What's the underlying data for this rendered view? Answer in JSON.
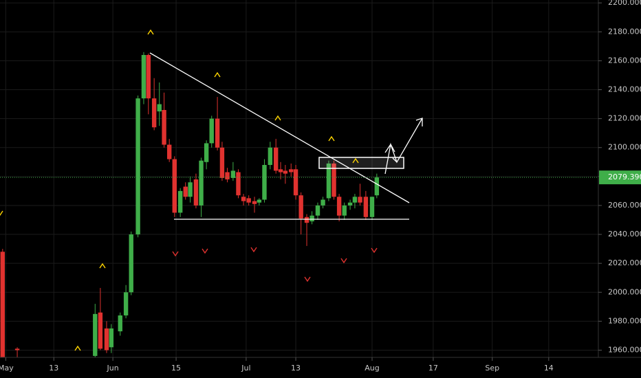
{
  "chart_data": {
    "type": "candlestick",
    "up_color": "#3fae49",
    "down_color": "#e0322f",
    "grid": true,
    "xlim": [
      0,
      114.5
    ],
    "ylim": [
      1955,
      2202
    ],
    "xticks": [
      {
        "value": 1.1,
        "label": "May"
      },
      {
        "value": 10.3,
        "label": "13"
      },
      {
        "value": 21.6,
        "label": "Jun"
      },
      {
        "value": 33.7,
        "label": "15"
      },
      {
        "value": 47.1,
        "label": "Jul"
      },
      {
        "value": 56.6,
        "label": "13"
      },
      {
        "value": 71.2,
        "label": "Aug"
      },
      {
        "value": 82.9,
        "label": "17"
      },
      {
        "value": 94.2,
        "label": "Sep"
      },
      {
        "value": 105,
        "label": "14"
      }
    ],
    "yticks": [
      {
        "value": 1960,
        "label": "1960.000"
      },
      {
        "value": 1980,
        "label": "1980.000"
      },
      {
        "value": 2000,
        "label": "2000.000"
      },
      {
        "value": 2020,
        "label": "2020.000"
      },
      {
        "value": 2040,
        "label": "2040.000"
      },
      {
        "value": 2060,
        "label": "2060.000"
      },
      {
        "value": 2080,
        "label": "2080.000"
      },
      {
        "value": 2100,
        "label": "2100.000"
      },
      {
        "value": 2120,
        "label": "2120.000"
      },
      {
        "value": 2140,
        "label": "2140.000"
      },
      {
        "value": 2160,
        "label": "2160.000"
      },
      {
        "value": 2180,
        "label": "2180.000"
      },
      {
        "value": 2200,
        "label": "2200.000"
      }
    ],
    "last_price": {
      "value": 2079.39,
      "label": "2079.390"
    },
    "x": [
      0.5,
      3.3,
      18.2,
      19.2,
      20.4,
      21.3,
      23,
      24.1,
      25.1,
      26.4,
      27.5,
      28.4,
      29.5,
      30.5,
      31.4,
      32.4,
      33.4,
      34.5,
      35.5,
      36.4,
      37.5,
      38.5,
      39.5,
      40.5,
      41.6,
      42.5,
      43.5,
      44.6,
      45.6,
      46.6,
      47.6,
      48.7,
      49.6,
      50.6,
      51.7,
      52.8,
      53.7,
      54.6,
      55.7,
      56.6,
      57.6,
      58.7,
      59.7,
      60.8,
      61.8,
      62.9,
      63.9,
      64.9,
      65.9,
      67,
      67.9,
      68.9,
      70,
      71.2,
      72.1
    ],
    "open": [
      2028,
      1961,
      1956,
      1986,
      1975,
      1962,
      1973,
      1984,
      2000,
      2040,
      2134,
      2164,
      2134,
      2125,
      2126,
      2102,
      2092,
      2055,
      2073,
      2066,
      2078,
      2060,
      2090,
      2103,
      2120,
      2100,
      2083,
      2079,
      2083,
      2066,
      2065,
      2063,
      2062,
      2064,
      2088,
      2100,
      2085,
      2084,
      2085,
      2085,
      2067,
      2052,
      2049,
      2053,
      2060,
      2065,
      2089,
      2066,
      2053,
      2060,
      2062,
      2066,
      2066,
      2052,
      2067
    ],
    "high": [
      2030,
      1962,
      1992,
      2003,
      1980,
      1978,
      1986,
      2005,
      2042,
      2136,
      2166,
      2165,
      2148,
      2145,
      2138,
      2106,
      2094,
      2072,
      2076,
      2080,
      2082,
      2093,
      2105,
      2122,
      2135,
      2104,
      2086,
      2090,
      2085,
      2068,
      2067,
      2066,
      2065,
      2092,
      2104,
      2106,
      2090,
      2088,
      2089,
      2088,
      2069,
      2054,
      2056,
      2062,
      2066,
      2091,
      2091,
      2068,
      2062,
      2064,
      2068,
      2075,
      2070,
      2066,
      2082
    ],
    "low": [
      1950,
      1955,
      1955,
      1960,
      1958,
      1958,
      1970,
      1982,
      1998,
      2038,
      2130,
      2123,
      2112,
      2115,
      2100,
      2090,
      2052,
      2052,
      2064,
      2062,
      2058,
      2052,
      2085,
      2100,
      2098,
      2077,
      2076,
      2077,
      2065,
      2060,
      2060,
      2055,
      2060,
      2062,
      2085,
      2082,
      2078,
      2075,
      2080,
      2064,
      2040,
      2032,
      2047,
      2050,
      2058,
      2063,
      2064,
      2049,
      2050,
      2057,
      2058,
      2060,
      2050,
      2050,
      2065
    ],
    "close": [
      1952,
      1960,
      1985,
      1961,
      1960,
      1975,
      1984,
      2000,
      2040,
      2134,
      2164,
      2134,
      2114,
      2130,
      2102,
      2092,
      2055,
      2070,
      2066,
      2076,
      2060,
      2091,
      2103,
      2120,
      2100,
      2079,
      2078,
      2084,
      2067,
      2063,
      2062,
      2061,
      2064,
      2088,
      2100,
      2084,
      2083,
      2082,
      2083,
      2067,
      2051,
      2048,
      2053,
      2060,
      2064,
      2089,
      2066,
      2053,
      2060,
      2062,
      2066,
      2062,
      2052,
      2066,
      2079.39
    ]
  }
}
